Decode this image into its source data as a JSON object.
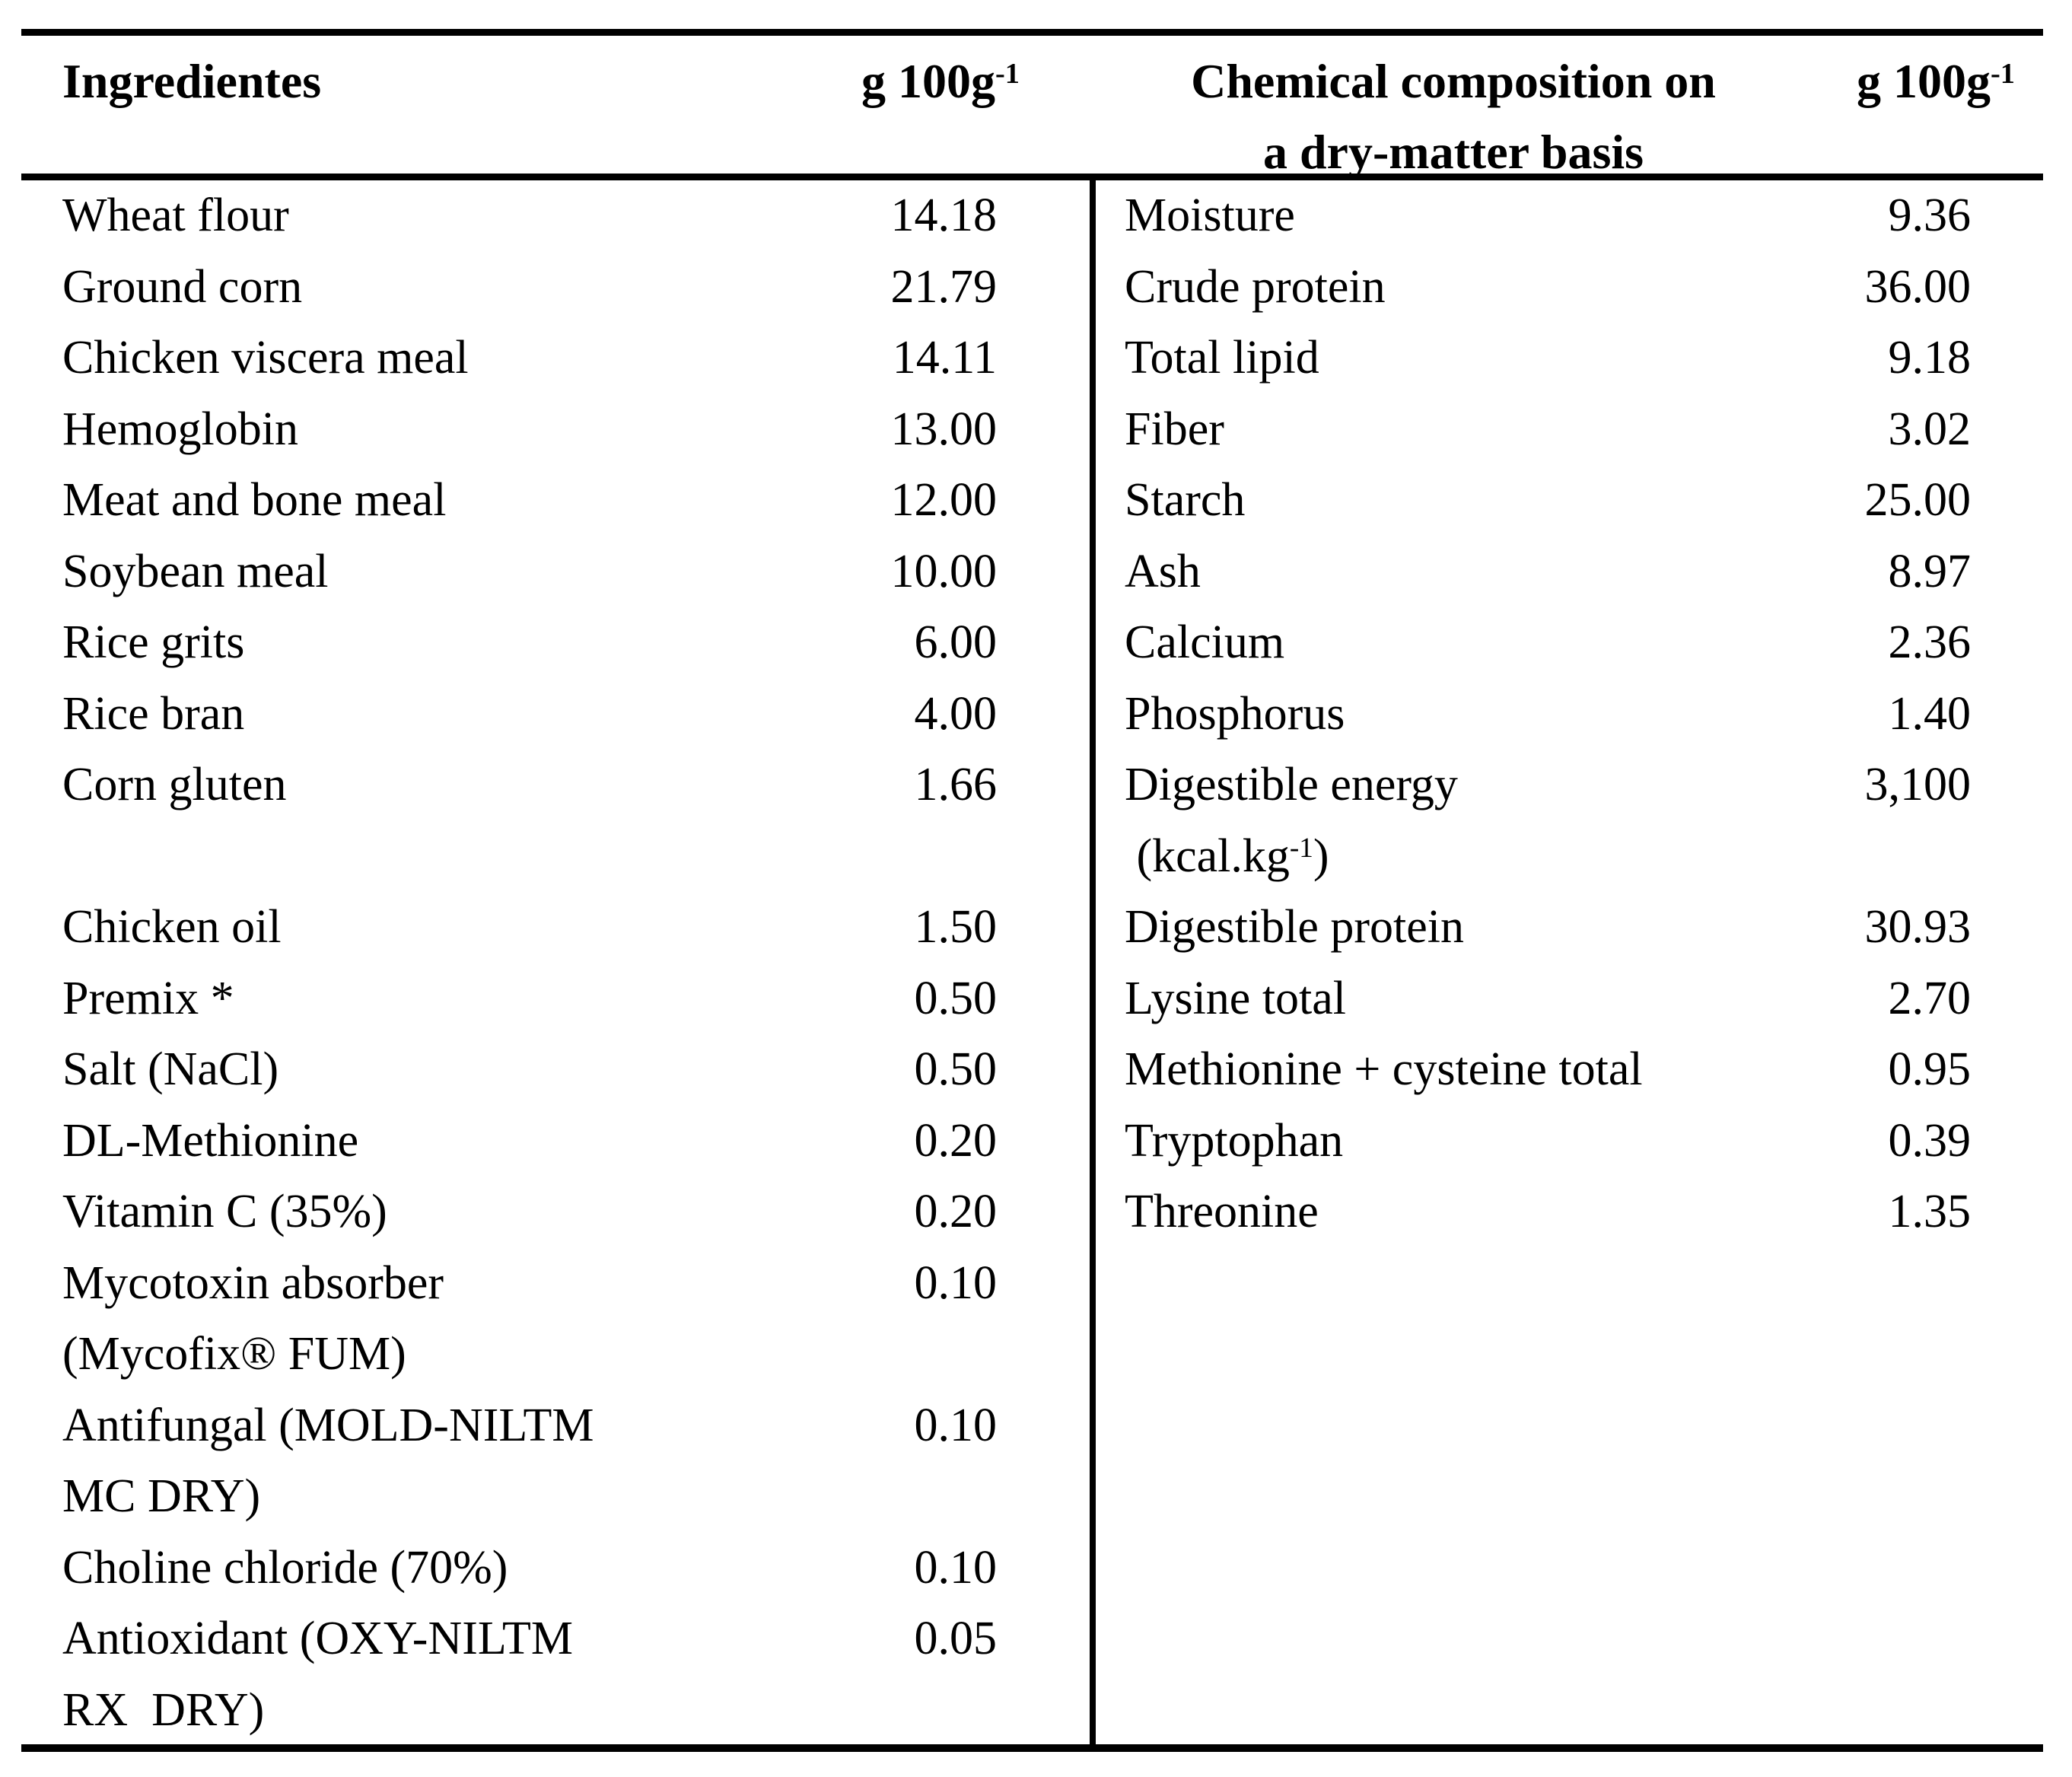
{
  "table": {
    "header": {
      "ingredients_label": "Ingredientes",
      "ingredients_unit": {
        "base": "g 100g",
        "sup": "-1"
      },
      "composition_label_line1": "Chemical composition on",
      "composition_label_line2": "a dry-matter basis",
      "composition_unit": {
        "base": "g 100g",
        "sup": "-1"
      }
    },
    "ingredients": {
      "rows": [
        {
          "label": "Wheat flour",
          "value": "14.18"
        },
        {
          "label": "Ground corn",
          "value": "21.79"
        },
        {
          "label": "Chicken viscera meal",
          "value": "14.11"
        },
        {
          "label": "Hemoglobin",
          "value": "13.00"
        },
        {
          "label": "Meat and bone meal",
          "value": "12.00"
        },
        {
          "label": "Soybean meal",
          "value": "10.00"
        },
        {
          "label": "Rice grits",
          "value": "6.00"
        },
        {
          "label": "Rice bran",
          "value": "4.00"
        },
        {
          "label": "Corn gluten",
          "value": "1.66"
        },
        {
          "label": "",
          "value": ""
        },
        {
          "label": "Chicken oil",
          "value": "1.50"
        },
        {
          "label": "Premix *",
          "value": "0.50"
        },
        {
          "label": "Salt (NaCl)",
          "value": "0.50"
        },
        {
          "label": "DL-Methionine",
          "value": "0.20"
        },
        {
          "label": "Vitamin C (35%)",
          "value": "0.20"
        },
        {
          "label": "Mycotoxin absorber",
          "value": "0.10"
        },
        {
          "label": "(Mycofix® FUM)",
          "value": ""
        },
        {
          "label": "Antifungal (MOLD-NILTM",
          "value": "0.10"
        },
        {
          "label": "MC DRY)",
          "value": ""
        },
        {
          "label": "Choline chloride (70%)",
          "value": "0.10"
        },
        {
          "label": "Antioxidant (OXY-NILTM",
          "value": "0.05"
        },
        {
          "label": "RX  DRY)",
          "value": ""
        }
      ]
    },
    "composition": {
      "rows": [
        {
          "label": "Moisture",
          "value": "9.36"
        },
        {
          "label": "Crude protein",
          "value": "36.00"
        },
        {
          "label": "Total lipid",
          "value": "9.18"
        },
        {
          "label": "Fiber",
          "value": "3.02"
        },
        {
          "label": "Starch",
          "value": "25.00"
        },
        {
          "label": "Ash",
          "value": "8.97"
        },
        {
          "label": "Calcium",
          "value": "2.36"
        },
        {
          "label": "Phosphorus",
          "value": "1.40"
        },
        {
          "label": "Digestible energy",
          "value": "3,100"
        },
        {
          "label": " (kcal.kg",
          "label_sup": "-1",
          "label_tail": ")",
          "value": ""
        },
        {
          "label": "Digestible protein",
          "value": "30.93"
        },
        {
          "label": "Lysine total",
          "value": "2.70"
        },
        {
          "label": "Methionine + cysteine total",
          "value": "0.95"
        },
        {
          "label": "Tryptophan",
          "value": "0.39"
        },
        {
          "label": "Threonine",
          "value": "1.35"
        }
      ]
    },
    "colors": {
      "text": "#000000",
      "background": "#ffffff",
      "rule": "#000000"
    }
  }
}
